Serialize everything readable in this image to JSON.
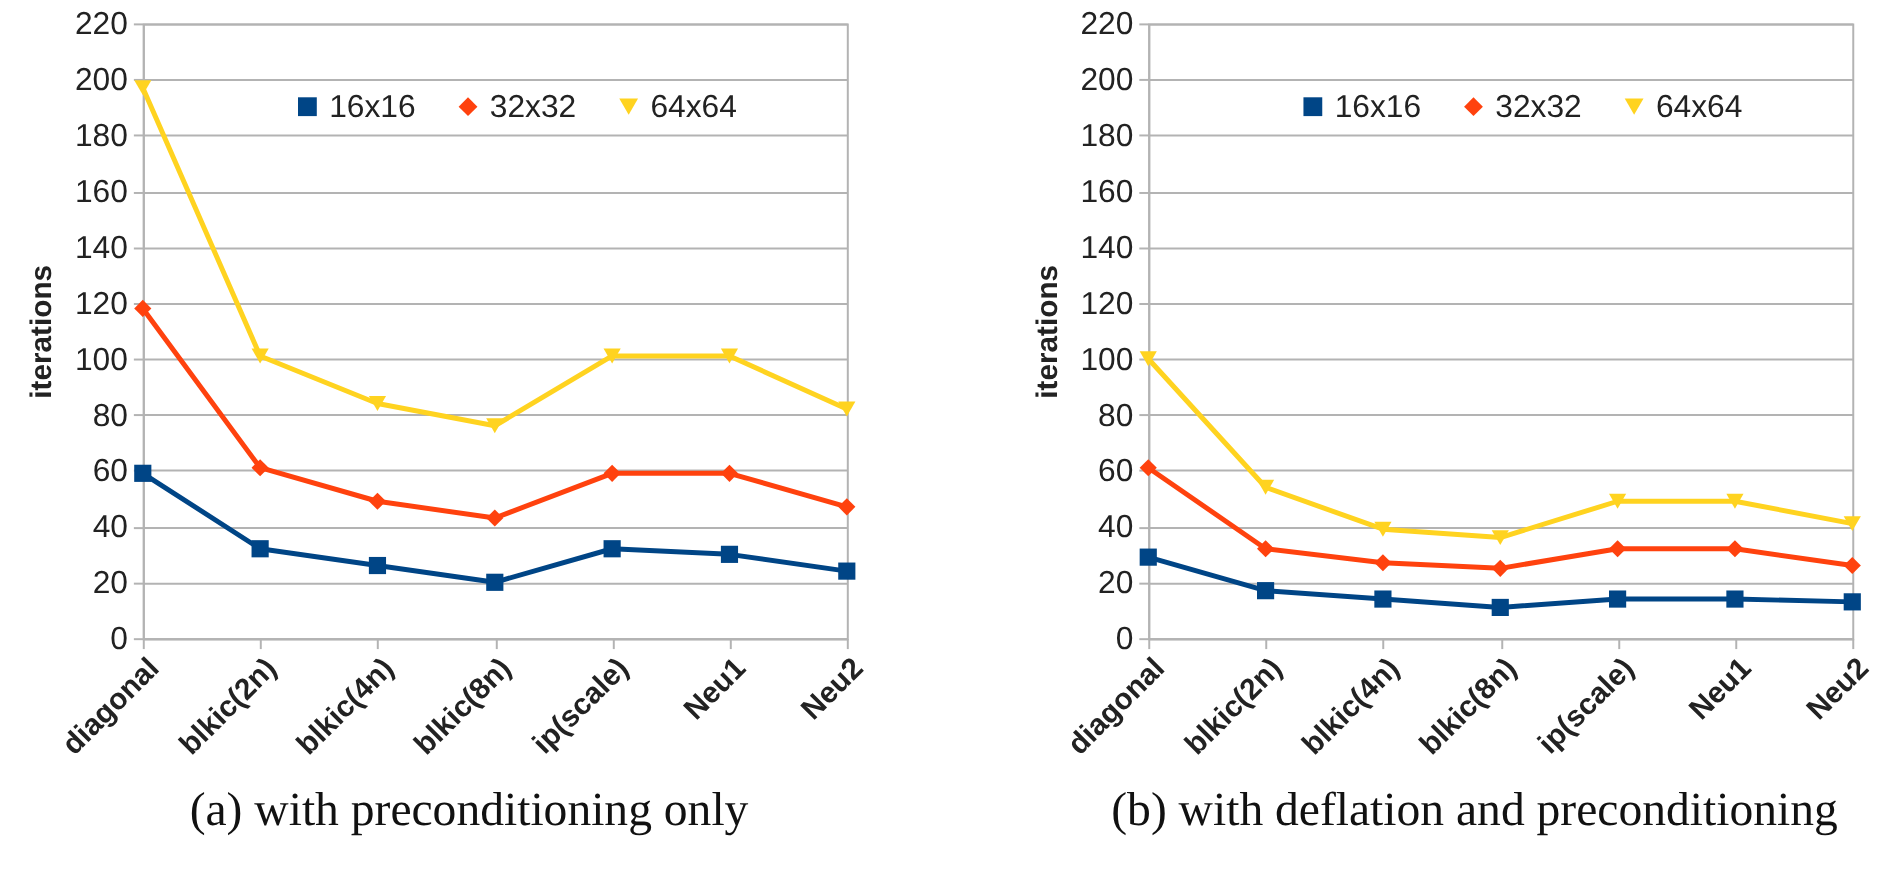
{
  "chart_data": [
    {
      "type": "line",
      "title": "(a) with preconditioning only",
      "ylabel": "iterations",
      "categories": [
        "diagonal",
        "blkic(2n)",
        "blkic(4n)",
        "blkic(8n)",
        "ip(scale)",
        "Neu1",
        "Neu2"
      ],
      "series": [
        {
          "name": "16x16",
          "color": "#004586",
          "marker": "square",
          "values": [
            59,
            32,
            26,
            20,
            32,
            30,
            24
          ]
        },
        {
          "name": "32x32",
          "color": "#ff420e",
          "marker": "diamond",
          "values": [
            118,
            61,
            49,
            43,
            59,
            59,
            47
          ]
        },
        {
          "name": "64x64",
          "color": "#ffd320",
          "marker": "triangle",
          "values": [
            197,
            101,
            84,
            76,
            101,
            101,
            82
          ]
        }
      ],
      "ylim": [
        0,
        220
      ],
      "yticks": [
        0,
        20,
        40,
        60,
        80,
        100,
        120,
        140,
        160,
        180,
        200,
        220
      ],
      "grid": "y",
      "legend": "top",
      "line_style": "solid"
    },
    {
      "type": "line",
      "title": "(b) with deflation and preconditioning",
      "ylabel": "iterations",
      "categories": [
        "diagonal",
        "blkic(2n)",
        "blkic(4n)",
        "blkic(8n)",
        "ip(scale)",
        "Neu1",
        "Neu2"
      ],
      "series": [
        {
          "name": "16x16",
          "color": "#004586",
          "marker": "square",
          "values": [
            29,
            17,
            14,
            11,
            14,
            14,
            13
          ]
        },
        {
          "name": "32x32",
          "color": "#ff420e",
          "marker": "diamond",
          "values": [
            61,
            32,
            27,
            25,
            32,
            32,
            26
          ]
        },
        {
          "name": "64x64",
          "color": "#ffd320",
          "marker": "triangle",
          "values": [
            100,
            54,
            39,
            36,
            49,
            49,
            41
          ]
        }
      ],
      "ylim": [
        0,
        220
      ],
      "yticks": [
        0,
        20,
        40,
        60,
        80,
        100,
        120,
        140,
        160,
        180,
        200,
        220
      ],
      "grid": "y",
      "legend": "top",
      "line_style": "solid"
    }
  ]
}
